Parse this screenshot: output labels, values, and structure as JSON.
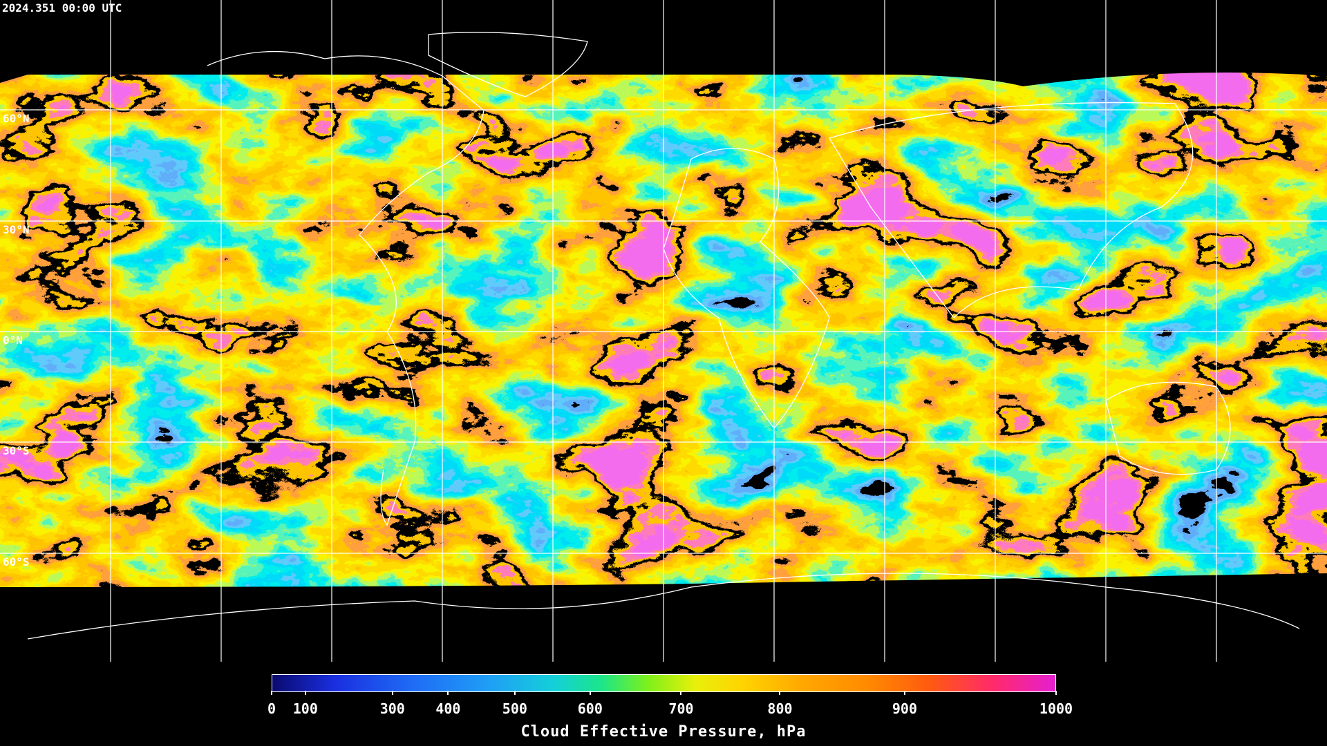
{
  "timestamp": "2024.351 00:00 UTC",
  "latitude_labels": [
    "60°N",
    "30°N",
    "0°N",
    "30°S",
    "60°S"
  ],
  "colorbar": {
    "title": "Cloud Effective Pressure, hPa",
    "ticks": [
      0,
      100,
      300,
      400,
      500,
      600,
      700,
      800,
      900,
      1000
    ]
  }
}
